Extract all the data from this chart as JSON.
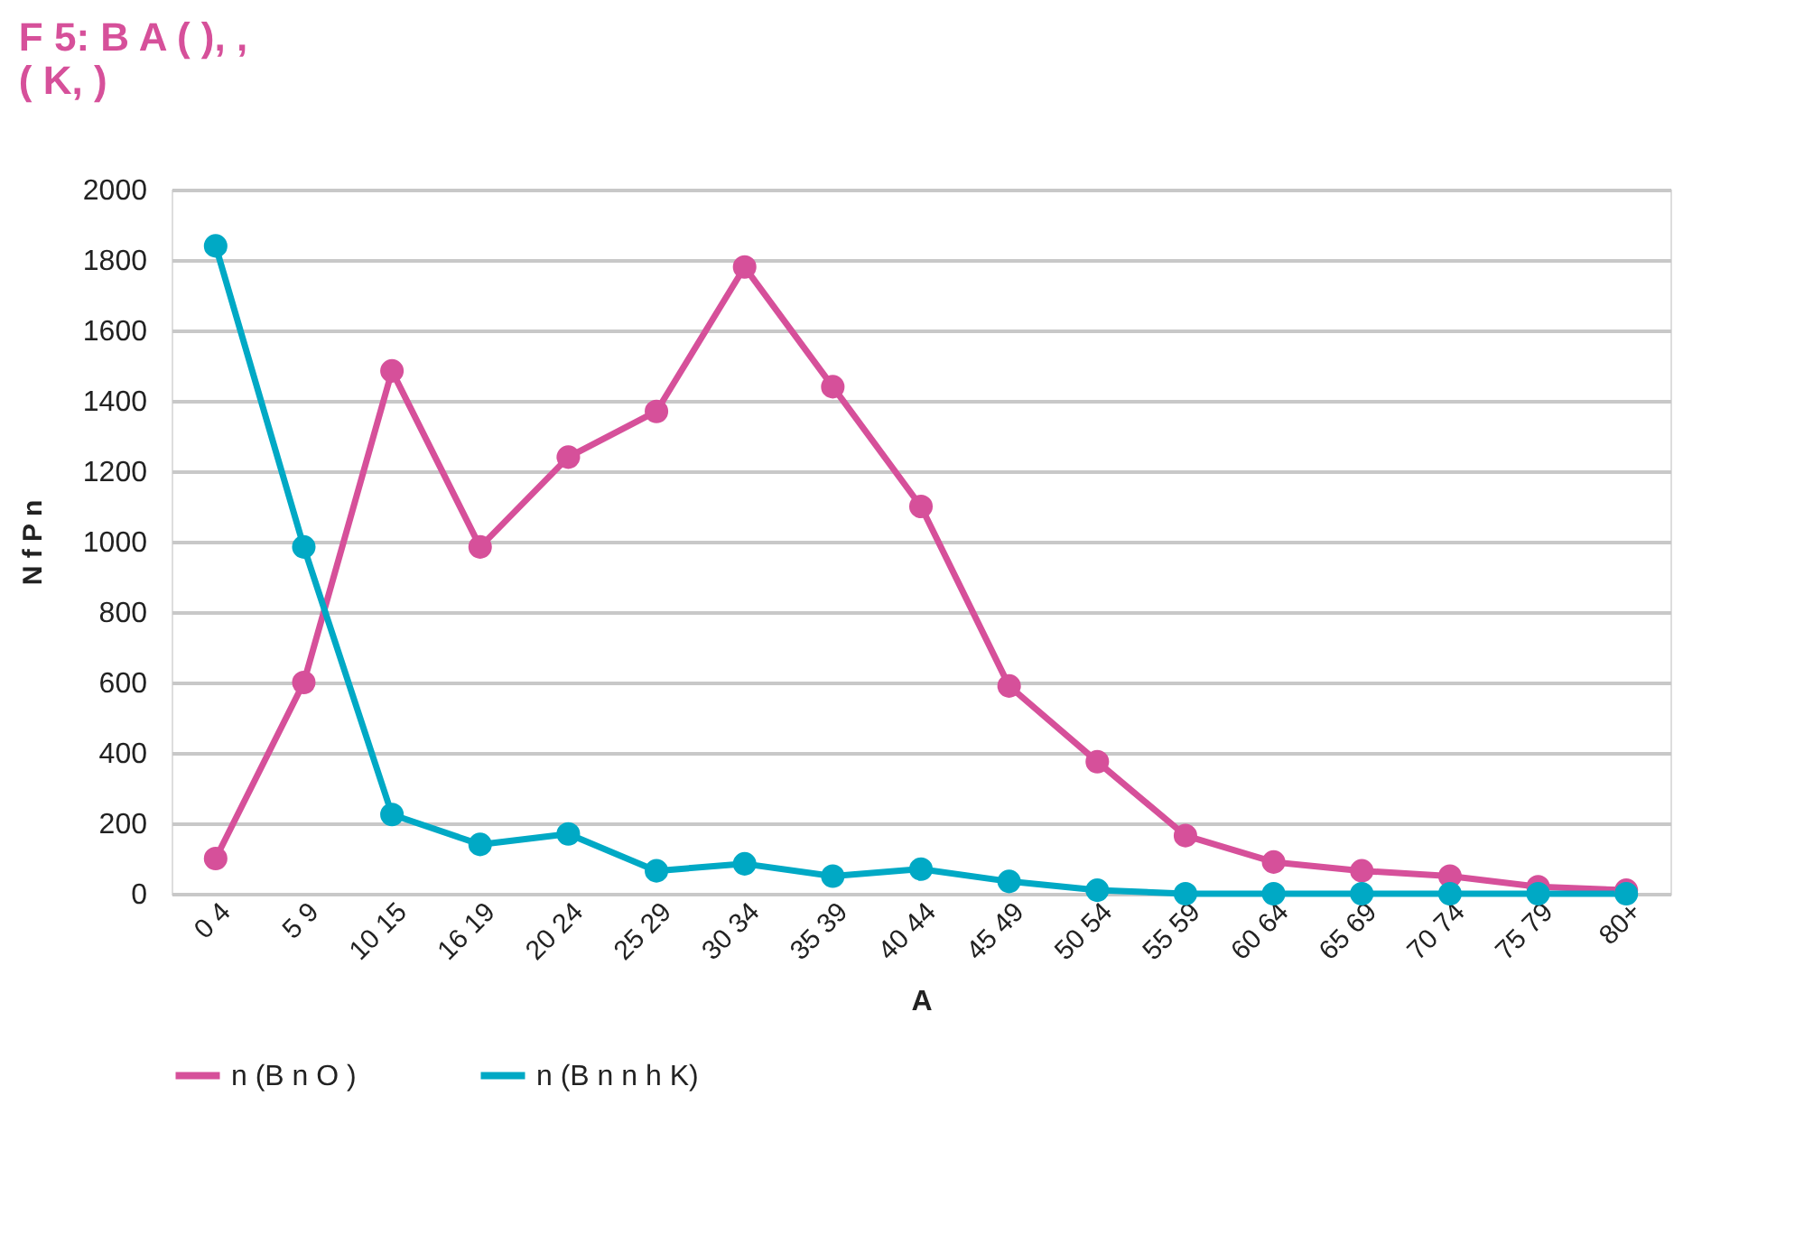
{
  "chart_data": {
    "type": "line",
    "title": [
      "F 5: B A ( ), ,",
      "( K, )"
    ],
    "xlabel": "A",
    "ylabel": "N f P n",
    "categories": [
      "0 4",
      "5 9",
      "10 15",
      "16 19",
      "20 24",
      "25 29",
      "30 34",
      "35 39",
      "40 44",
      "45 49",
      "50 54",
      "55 59",
      "60 64",
      "65 69",
      "70 74",
      "75 79",
      "80+"
    ],
    "series": [
      {
        "name": "n (B n O )",
        "color": "#d6509a",
        "values": [
          100,
          600,
          1485,
          985,
          1240,
          1370,
          1780,
          1440,
          1100,
          590,
          375,
          165,
          90,
          65,
          50,
          20,
          10
        ]
      },
      {
        "name": "n (B n n h K)",
        "color": "#00a9c5",
        "values": [
          1840,
          985,
          225,
          140,
          170,
          65,
          85,
          50,
          70,
          35,
          10,
          0,
          0,
          0,
          0,
          0,
          0
        ]
      }
    ],
    "ylim": [
      0,
      2000
    ],
    "yticks": [
      0,
      200,
      400,
      600,
      800,
      1000,
      1200,
      1400,
      1600,
      1800,
      2000
    ],
    "grid": "y",
    "legend": "bottom",
    "marker": "circle",
    "line_style": "solid"
  }
}
